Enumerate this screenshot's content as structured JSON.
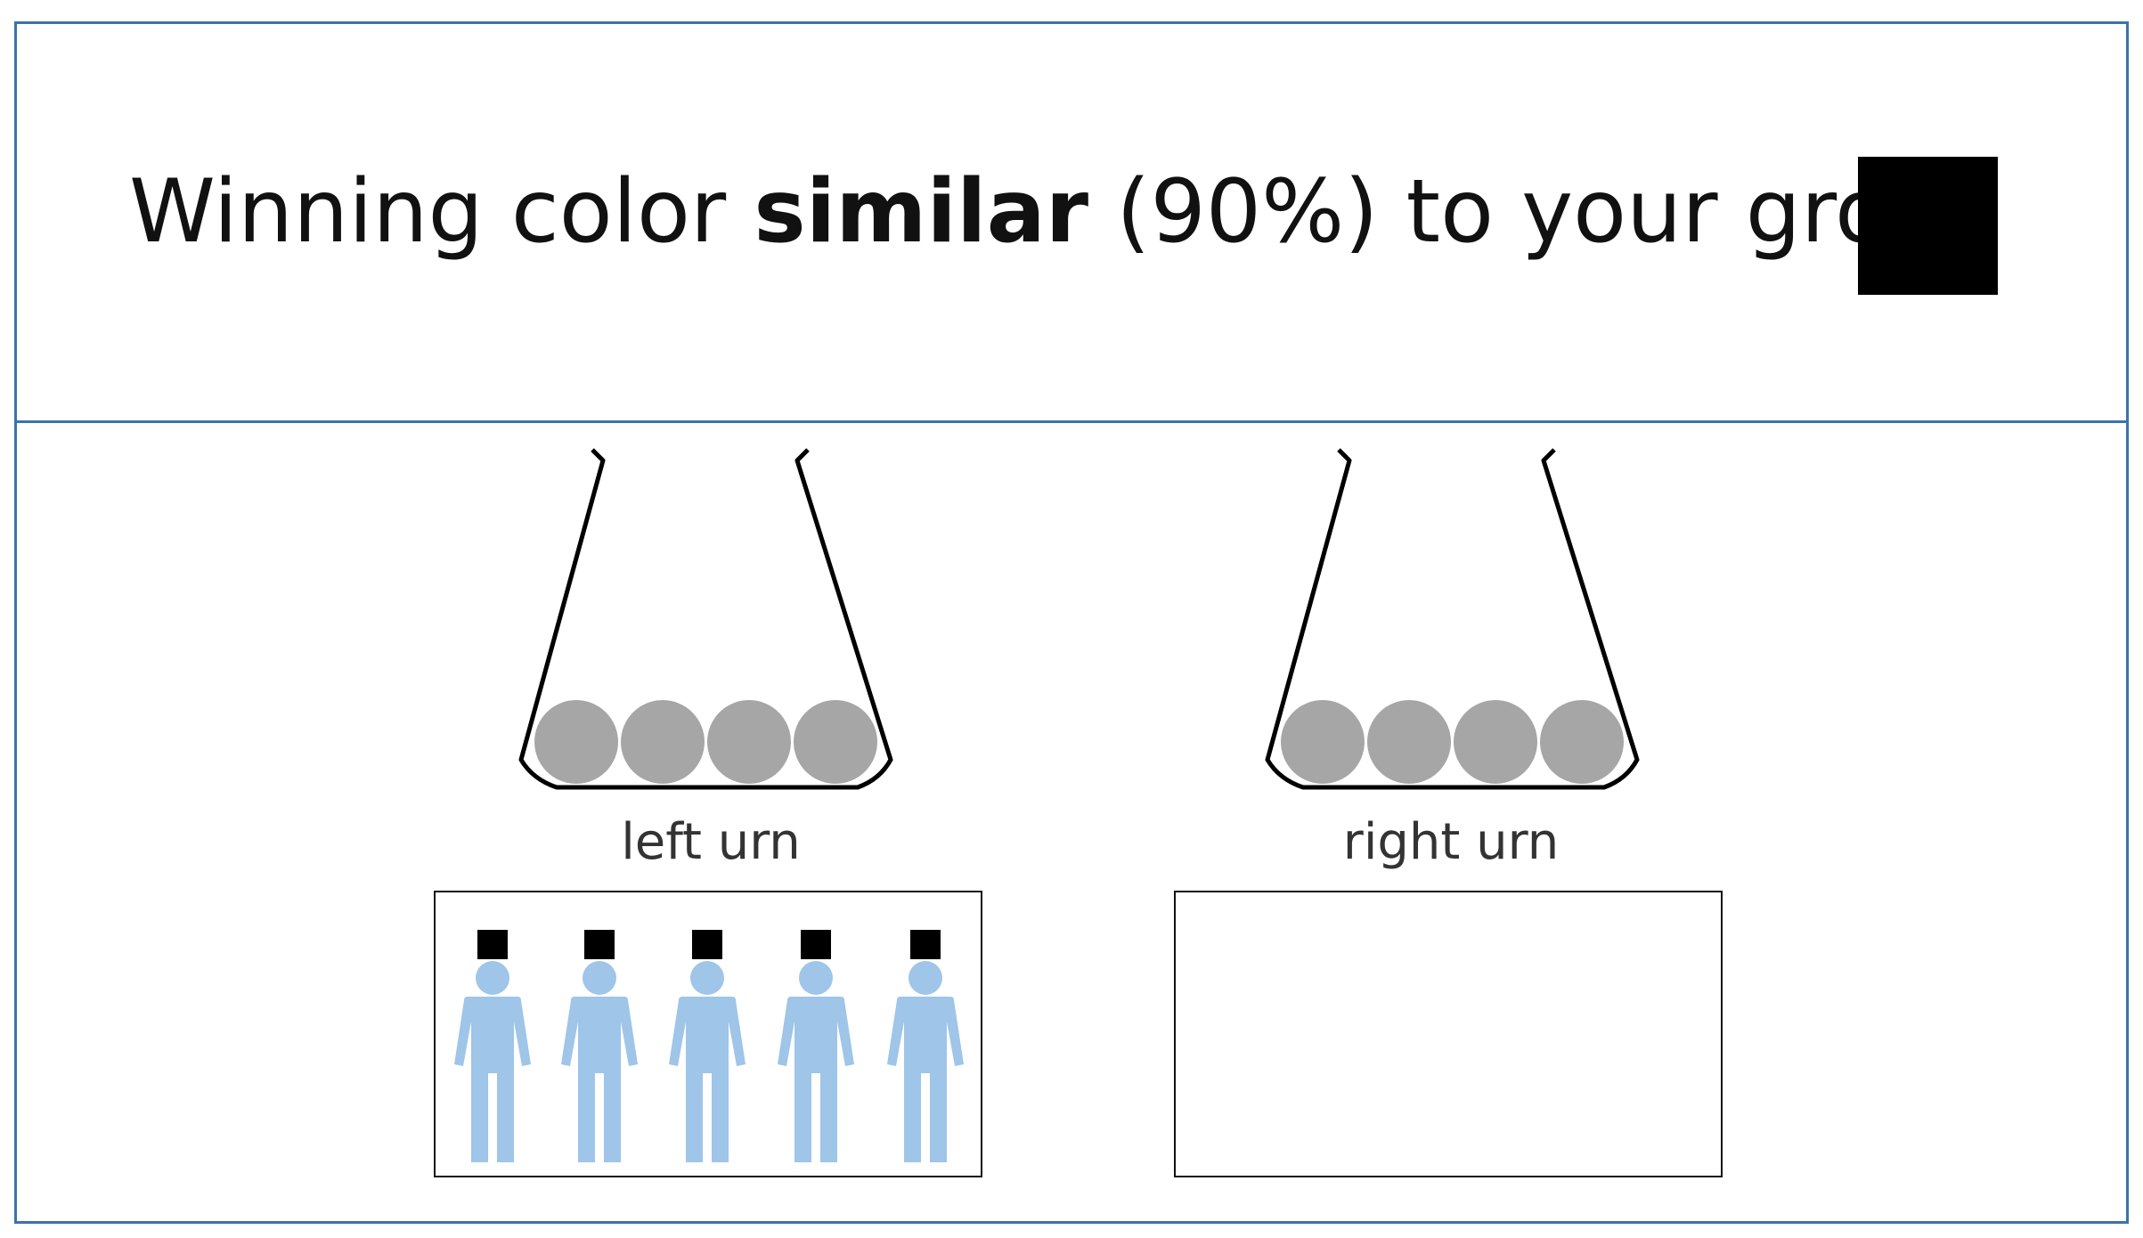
{
  "headline": {
    "prefix": "Winning color ",
    "emphasis": "similar",
    "suffix": " (90%) to your group"
  },
  "colors": {
    "frame_border": "#3a74a8",
    "group_color": "#000000",
    "ball_color": "#a6a6a6",
    "person_color": "#9fc5e8"
  },
  "urns": [
    {
      "label": "left urn",
      "balls": 4,
      "group_members": 5
    },
    {
      "label": "right urn",
      "balls": 4,
      "group_members": 0
    }
  ]
}
